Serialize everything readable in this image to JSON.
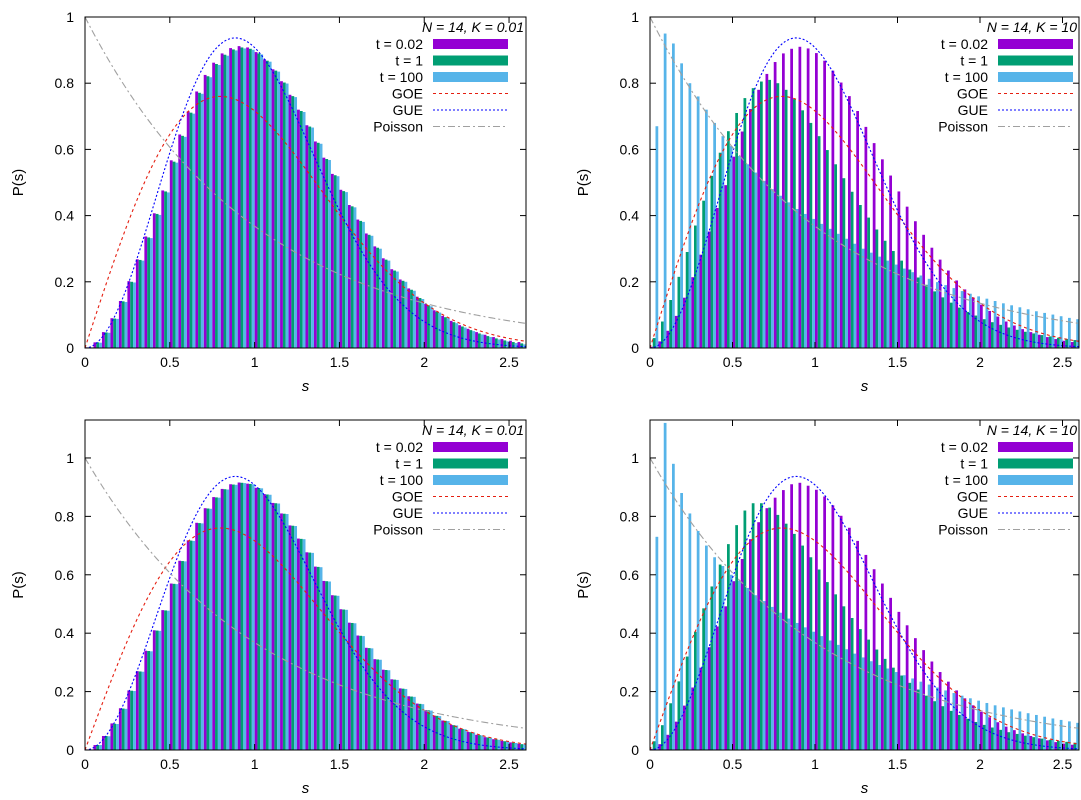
{
  "legend_labels": {
    "t002": "t = 0.02",
    "t1": "t = 1",
    "t100": "t = 100",
    "goe": "GOE",
    "gue": "GUE",
    "poisson": "Poisson"
  },
  "colors": {
    "t002": "#9400d3",
    "t1": "#009e73",
    "t100": "#56b4e9",
    "goe": "#e51e10",
    "gue": "#0000ff",
    "poisson": "#a0a0a0"
  },
  "chart_data": [
    {
      "type": "bar",
      "panel": "top-left",
      "title": "N = 14, K = 0.01",
      "xlabel": "s",
      "ylabel": "P(s)",
      "xlim": [
        0,
        2.6
      ],
      "ylim": [
        0,
        1
      ],
      "xticks": [
        0,
        0.5,
        1,
        1.5,
        2,
        2.5
      ],
      "yticks": [
        0,
        0.2,
        0.4,
        0.6,
        0.8,
        1
      ],
      "grid": false,
      "legend": "top-right",
      "bar_width": 0.05,
      "x": [
        0.025,
        0.075,
        0.125,
        0.175,
        0.225,
        0.275,
        0.325,
        0.375,
        0.425,
        0.475,
        0.525,
        0.575,
        0.625,
        0.675,
        0.725,
        0.775,
        0.825,
        0.875,
        0.925,
        0.975,
        1.025,
        1.075,
        1.125,
        1.175,
        1.225,
        1.275,
        1.325,
        1.375,
        1.425,
        1.475,
        1.525,
        1.575,
        1.625,
        1.675,
        1.725,
        1.775,
        1.825,
        1.875,
        1.925,
        1.975,
        2.025,
        2.075,
        2.125,
        2.175,
        2.225,
        2.275,
        2.325,
        2.375,
        2.425,
        2.475,
        2.525,
        2.575
      ],
      "series": [
        {
          "name": "t = 0.02",
          "values": [
            0.002,
            0.017,
            0.048,
            0.09,
            0.142,
            0.202,
            0.268,
            0.337,
            0.407,
            0.476,
            0.567,
            0.645,
            0.715,
            0.775,
            0.825,
            0.862,
            0.89,
            0.906,
            0.912,
            0.908,
            0.894,
            0.872,
            0.842,
            0.806,
            0.765,
            0.72,
            0.673,
            0.624,
            0.575,
            0.526,
            0.478,
            0.432,
            0.388,
            0.346,
            0.307,
            0.271,
            0.238,
            0.207,
            0.18,
            0.155,
            0.133,
            0.114,
            0.097,
            0.082,
            0.069,
            0.058,
            0.048,
            0.04,
            0.033,
            0.027,
            0.022,
            0.018
          ]
        },
        {
          "name": "t = 1",
          "values": [
            0.002,
            0.017,
            0.047,
            0.089,
            0.141,
            0.2,
            0.266,
            0.334,
            0.405,
            0.473,
            0.563,
            0.641,
            0.711,
            0.771,
            0.821,
            0.858,
            0.886,
            0.902,
            0.908,
            0.904,
            0.89,
            0.868,
            0.838,
            0.802,
            0.761,
            0.716,
            0.669,
            0.62,
            0.571,
            0.522,
            0.474,
            0.428,
            0.384,
            0.342,
            0.303,
            0.267,
            0.234,
            0.203,
            0.176,
            0.151,
            0.129,
            0.11,
            0.093,
            0.078,
            0.065,
            0.054,
            0.044,
            0.036,
            0.029,
            0.023,
            0.018,
            0.014
          ]
        },
        {
          "name": "t = 100",
          "values": [
            0.002,
            0.016,
            0.046,
            0.088,
            0.139,
            0.198,
            0.264,
            0.332,
            0.402,
            0.47,
            0.56,
            0.638,
            0.708,
            0.768,
            0.818,
            0.855,
            0.883,
            0.899,
            0.905,
            0.901,
            0.887,
            0.865,
            0.835,
            0.799,
            0.758,
            0.713,
            0.666,
            0.617,
            0.568,
            0.519,
            0.471,
            0.425,
            0.381,
            0.339,
            0.3,
            0.264,
            0.231,
            0.2,
            0.173,
            0.148,
            0.126,
            0.107,
            0.09,
            0.075,
            0.062,
            0.051,
            0.041,
            0.033,
            0.026,
            0.02,
            0.015,
            0.011
          ]
        }
      ],
      "reference_curves": [
        "GOE",
        "GUE",
        "Poisson"
      ]
    },
    {
      "type": "bar",
      "panel": "top-right",
      "title": "N = 14, K = 10",
      "xlabel": "s",
      "ylabel": "P(s)",
      "xlim": [
        0,
        2.6
      ],
      "ylim": [
        0,
        1
      ],
      "xticks": [
        0,
        0.5,
        1,
        1.5,
        2,
        2.5
      ],
      "yticks": [
        0,
        0.2,
        0.4,
        0.6,
        0.8,
        1
      ],
      "grid": false,
      "legend": "top-right",
      "bar_width": 0.05,
      "x": [
        0.025,
        0.075,
        0.125,
        0.175,
        0.225,
        0.275,
        0.325,
        0.375,
        0.425,
        0.475,
        0.525,
        0.575,
        0.625,
        0.675,
        0.725,
        0.775,
        0.825,
        0.875,
        0.925,
        0.975,
        1.025,
        1.075,
        1.125,
        1.175,
        1.225,
        1.275,
        1.325,
        1.375,
        1.425,
        1.475,
        1.525,
        1.575,
        1.625,
        1.675,
        1.725,
        1.775,
        1.825,
        1.875,
        1.925,
        1.975,
        2.025,
        2.075,
        2.125,
        2.175,
        2.225,
        2.275,
        2.325,
        2.375,
        2.425,
        2.475,
        2.525,
        2.575
      ],
      "series": [
        {
          "name": "t = 0.02",
          "values": [
            0.004,
            0.02,
            0.052,
            0.097,
            0.152,
            0.214,
            0.282,
            0.352,
            0.423,
            0.492,
            0.578,
            0.654,
            0.722,
            0.78,
            0.828,
            0.864,
            0.89,
            0.904,
            0.91,
            0.905,
            0.891,
            0.868,
            0.838,
            0.802,
            0.761,
            0.716,
            0.668,
            0.619,
            0.57,
            0.521,
            0.473,
            0.427,
            0.383,
            0.342,
            0.303,
            0.267,
            0.234,
            0.204,
            0.177,
            0.153,
            0.131,
            0.112,
            0.095,
            0.08,
            0.068,
            0.057,
            0.048,
            0.04,
            0.033,
            0.027,
            0.022,
            0.018
          ]
        },
        {
          "name": "t = 1",
          "values": [
            0.03,
            0.08,
            0.145,
            0.215,
            0.29,
            0.37,
            0.445,
            0.52,
            0.59,
            0.655,
            0.71,
            0.755,
            0.785,
            0.805,
            0.81,
            0.8,
            0.78,
            0.752,
            0.718,
            0.68,
            0.64,
            0.598,
            0.555,
            0.513,
            0.472,
            0.432,
            0.394,
            0.358,
            0.324,
            0.293,
            0.264,
            0.237,
            0.213,
            0.191,
            0.171,
            0.153,
            0.137,
            0.122,
            0.109,
            0.098,
            0.087,
            0.078,
            0.07,
            0.062,
            0.055,
            0.049,
            0.044,
            0.039,
            0.035,
            0.031,
            0.027,
            0.024
          ]
        },
        {
          "name": "t = 100",
          "values": [
            0.67,
            0.95,
            0.92,
            0.86,
            0.8,
            0.76,
            0.72,
            0.68,
            0.64,
            0.61,
            0.58,
            0.555,
            0.53,
            0.505,
            0.48,
            0.46,
            0.44,
            0.42,
            0.405,
            0.39,
            0.375,
            0.36,
            0.345,
            0.33,
            0.315,
            0.3,
            0.288,
            0.276,
            0.264,
            0.252,
            0.24,
            0.229,
            0.219,
            0.209,
            0.199,
            0.19,
            0.181,
            0.172,
            0.164,
            0.156,
            0.149,
            0.142,
            0.135,
            0.129,
            0.123,
            0.117,
            0.111,
            0.106,
            0.101,
            0.096,
            0.091,
            0.087
          ]
        }
      ],
      "reference_curves": [
        "GOE",
        "GUE",
        "Poisson"
      ]
    },
    {
      "type": "bar",
      "panel": "bottom-left",
      "title": "N = 14, K = 0.01",
      "xlabel": "s",
      "ylabel": "P(s)",
      "xlim": [
        0,
        2.6
      ],
      "ylim": [
        0,
        1.13
      ],
      "xticks": [
        0,
        0.5,
        1,
        1.5,
        2,
        2.5
      ],
      "yticks": [
        0,
        0.2,
        0.4,
        0.6,
        0.8,
        1
      ],
      "grid": false,
      "legend": "top-right",
      "bar_width": 0.05,
      "x": [
        0.025,
        0.075,
        0.125,
        0.175,
        0.225,
        0.275,
        0.325,
        0.375,
        0.425,
        0.475,
        0.525,
        0.575,
        0.625,
        0.675,
        0.725,
        0.775,
        0.825,
        0.875,
        0.925,
        0.975,
        1.025,
        1.075,
        1.125,
        1.175,
        1.225,
        1.275,
        1.325,
        1.375,
        1.425,
        1.475,
        1.525,
        1.575,
        1.625,
        1.675,
        1.725,
        1.775,
        1.825,
        1.875,
        1.925,
        1.975,
        2.025,
        2.075,
        2.125,
        2.175,
        2.225,
        2.275,
        2.325,
        2.375,
        2.425,
        2.475,
        2.525,
        2.575
      ],
      "series": [
        {
          "name": "t = 0.02",
          "values": [
            0.002,
            0.017,
            0.048,
            0.091,
            0.143,
            0.204,
            0.27,
            0.34,
            0.41,
            0.479,
            0.57,
            0.648,
            0.718,
            0.778,
            0.828,
            0.866,
            0.894,
            0.91,
            0.916,
            0.912,
            0.898,
            0.876,
            0.846,
            0.81,
            0.769,
            0.724,
            0.677,
            0.628,
            0.579,
            0.53,
            0.482,
            0.436,
            0.392,
            0.35,
            0.311,
            0.275,
            0.242,
            0.211,
            0.184,
            0.159,
            0.137,
            0.118,
            0.101,
            0.086,
            0.073,
            0.062,
            0.052,
            0.044,
            0.037,
            0.031,
            0.026,
            0.021
          ]
        },
        {
          "name": "t = 1",
          "values": [
            0.002,
            0.017,
            0.048,
            0.09,
            0.142,
            0.203,
            0.269,
            0.339,
            0.409,
            0.478,
            0.569,
            0.647,
            0.717,
            0.777,
            0.827,
            0.865,
            0.893,
            0.909,
            0.915,
            0.911,
            0.897,
            0.875,
            0.845,
            0.809,
            0.768,
            0.723,
            0.676,
            0.627,
            0.578,
            0.529,
            0.481,
            0.435,
            0.391,
            0.349,
            0.31,
            0.274,
            0.241,
            0.21,
            0.183,
            0.158,
            0.136,
            0.117,
            0.1,
            0.085,
            0.072,
            0.061,
            0.051,
            0.043,
            0.036,
            0.03,
            0.025,
            0.02
          ]
        },
        {
          "name": "t = 100",
          "values": [
            0.002,
            0.017,
            0.047,
            0.089,
            0.141,
            0.202,
            0.268,
            0.338,
            0.408,
            0.477,
            0.568,
            0.646,
            0.716,
            0.776,
            0.826,
            0.864,
            0.892,
            0.908,
            0.914,
            0.91,
            0.896,
            0.874,
            0.844,
            0.808,
            0.767,
            0.722,
            0.675,
            0.626,
            0.577,
            0.528,
            0.48,
            0.434,
            0.39,
            0.348,
            0.309,
            0.273,
            0.24,
            0.209,
            0.182,
            0.157,
            0.135,
            0.116,
            0.099,
            0.084,
            0.071,
            0.06,
            0.05,
            0.042,
            0.035,
            0.029,
            0.024,
            0.019
          ]
        }
      ],
      "reference_curves": [
        "GOE",
        "GUE",
        "Poisson"
      ]
    },
    {
      "type": "bar",
      "panel": "bottom-right",
      "title": "N = 14, K = 10",
      "xlabel": "s",
      "ylabel": "P(s)",
      "xlim": [
        0,
        2.6
      ],
      "ylim": [
        0,
        1.13
      ],
      "xticks": [
        0,
        0.5,
        1,
        1.5,
        2,
        2.5
      ],
      "yticks": [
        0,
        0.2,
        0.4,
        0.6,
        0.8,
        1
      ],
      "grid": false,
      "legend": "top-right",
      "bar_width": 0.05,
      "x": [
        0.025,
        0.075,
        0.125,
        0.175,
        0.225,
        0.275,
        0.325,
        0.375,
        0.425,
        0.475,
        0.525,
        0.575,
        0.625,
        0.675,
        0.725,
        0.775,
        0.825,
        0.875,
        0.925,
        0.975,
        1.025,
        1.075,
        1.125,
        1.175,
        1.225,
        1.275,
        1.325,
        1.375,
        1.425,
        1.475,
        1.525,
        1.575,
        1.625,
        1.675,
        1.725,
        1.775,
        1.825,
        1.875,
        1.925,
        1.975,
        2.025,
        2.075,
        2.125,
        2.175,
        2.225,
        2.275,
        2.325,
        2.375,
        2.425,
        2.475,
        2.525,
        2.575
      ],
      "series": [
        {
          "name": "t = 0.02",
          "values": [
            0.004,
            0.02,
            0.052,
            0.097,
            0.152,
            0.214,
            0.282,
            0.352,
            0.423,
            0.492,
            0.578,
            0.654,
            0.722,
            0.78,
            0.828,
            0.864,
            0.89,
            0.91,
            0.915,
            0.905,
            0.891,
            0.868,
            0.838,
            0.802,
            0.761,
            0.716,
            0.668,
            0.619,
            0.57,
            0.521,
            0.473,
            0.427,
            0.383,
            0.342,
            0.303,
            0.267,
            0.234,
            0.204,
            0.177,
            0.153,
            0.131,
            0.112,
            0.095,
            0.08,
            0.068,
            0.057,
            0.048,
            0.04,
            0.033,
            0.027,
            0.022,
            0.018
          ]
        },
        {
          "name": "t = 1",
          "values": [
            0.03,
            0.085,
            0.16,
            0.235,
            0.32,
            0.405,
            0.485,
            0.56,
            0.635,
            0.705,
            0.77,
            0.82,
            0.845,
            0.845,
            0.83,
            0.805,
            0.775,
            0.74,
            0.7,
            0.66,
            0.618,
            0.575,
            0.533,
            0.492,
            0.452,
            0.414,
            0.378,
            0.344,
            0.312,
            0.282,
            0.255,
            0.23,
            0.207,
            0.186,
            0.167,
            0.15,
            0.134,
            0.12,
            0.107,
            0.096,
            0.086,
            0.077,
            0.069,
            0.061,
            0.055,
            0.049,
            0.044,
            0.039,
            0.035,
            0.031,
            0.028,
            0.025
          ]
        },
        {
          "name": "t = 100",
          "values": [
            0.73,
            1.12,
            0.98,
            0.88,
            0.81,
            0.75,
            0.7,
            0.66,
            0.63,
            0.6,
            0.58,
            0.555,
            0.53,
            0.51,
            0.49,
            0.47,
            0.45,
            0.435,
            0.42,
            0.405,
            0.39,
            0.375,
            0.36,
            0.345,
            0.33,
            0.317,
            0.304,
            0.291,
            0.279,
            0.267,
            0.256,
            0.245,
            0.234,
            0.224,
            0.214,
            0.204,
            0.195,
            0.186,
            0.177,
            0.169,
            0.161,
            0.153,
            0.146,
            0.139,
            0.132,
            0.126,
            0.12,
            0.114,
            0.108,
            0.103,
            0.098,
            0.093
          ]
        }
      ],
      "reference_curves": [
        "GOE",
        "GUE",
        "Poisson"
      ]
    }
  ]
}
